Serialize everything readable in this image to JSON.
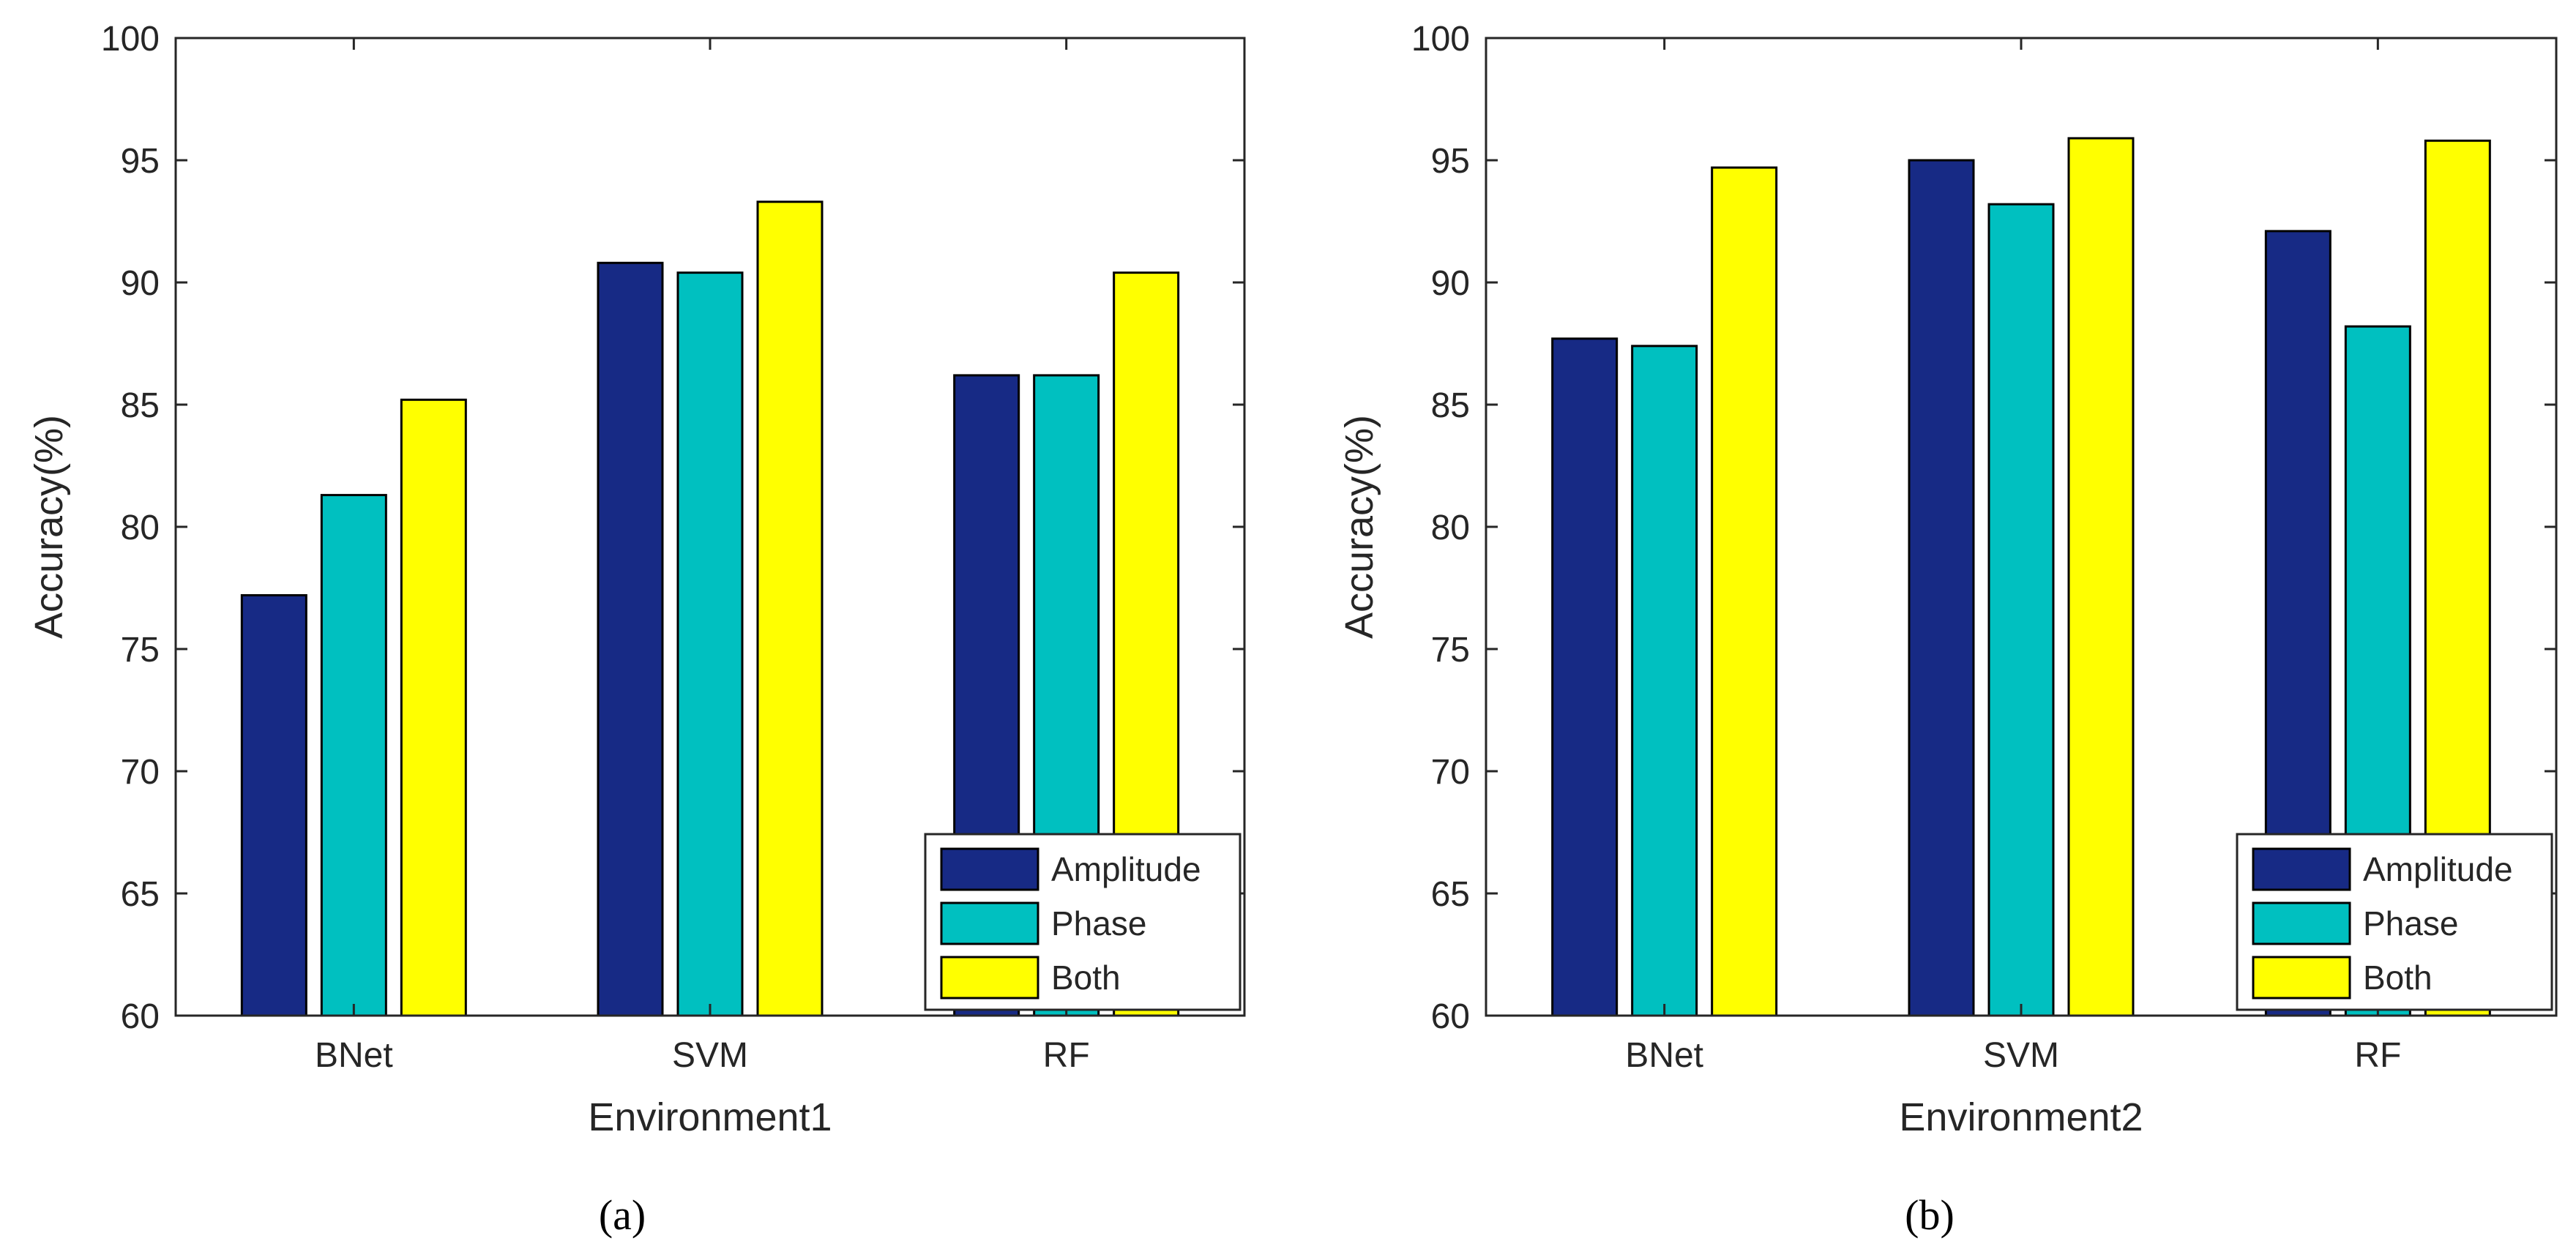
{
  "chart_data": [
    {
      "type": "bar",
      "panel_label": "(a)",
      "title": "",
      "xlabel": "Environment1",
      "ylabel": "Accuracy(%)",
      "categories": [
        "BNet",
        "SVM",
        "RF"
      ],
      "ylim": [
        60,
        100
      ],
      "yticks": [
        60,
        65,
        70,
        75,
        80,
        85,
        90,
        95,
        100
      ],
      "grid": false,
      "legend_location": "bottom-right",
      "series": [
        {
          "name": "Amplitude",
          "color": "#172a85",
          "values": [
            77.2,
            90.8,
            86.2
          ]
        },
        {
          "name": "Phase",
          "color": "#00c0c0",
          "values": [
            81.3,
            90.4,
            86.2
          ]
        },
        {
          "name": "Both",
          "color": "#ffff00",
          "values": [
            85.2,
            93.3,
            90.4
          ]
        }
      ]
    },
    {
      "type": "bar",
      "panel_label": "(b)",
      "title": "",
      "xlabel": "Environment2",
      "ylabel": "Accuracy(%)",
      "categories": [
        "BNet",
        "SVM",
        "RF"
      ],
      "ylim": [
        60,
        100
      ],
      "yticks": [
        60,
        65,
        70,
        75,
        80,
        85,
        90,
        95,
        100
      ],
      "grid": false,
      "legend_location": "bottom-right",
      "series": [
        {
          "name": "Amplitude",
          "color": "#172a85",
          "values": [
            87.7,
            95.0,
            92.1
          ]
        },
        {
          "name": "Phase",
          "color": "#00c0c0",
          "values": [
            87.4,
            93.2,
            88.2
          ]
        },
        {
          "name": "Both",
          "color": "#ffff00",
          "values": [
            94.7,
            95.9,
            95.8
          ]
        }
      ]
    }
  ]
}
